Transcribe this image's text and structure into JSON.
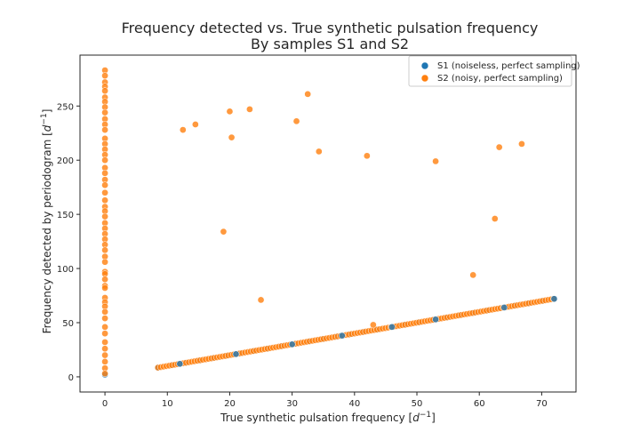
{
  "chart_data": {
    "type": "scatter",
    "title_line1": "Frequency detected vs. True synthetic pulsation frequency",
    "title_line2": "By samples S1 and S2",
    "xlabel_text": "True synthetic pulsation frequency [",
    "xlabel_unit": "d",
    "xlabel_exp": "−1",
    "xlabel_close": "]",
    "ylabel_text": "Frequency detected by periodogram [",
    "ylabel_unit": "d",
    "ylabel_exp": "−1",
    "ylabel_close": "]",
    "xlim": [
      -4,
      75.5
    ],
    "ylim": [
      -14,
      297
    ],
    "xticks": [
      0,
      10,
      20,
      30,
      40,
      50,
      60,
      70
    ],
    "yticks": [
      0,
      50,
      100,
      150,
      200,
      250
    ],
    "grid": false,
    "legend_position": "top-right",
    "colors": {
      "s1": "#1f77b4",
      "s2": "#ff7f0e",
      "axes": "#262626"
    },
    "legend": [
      {
        "label": "S1 (noiseless, perfect sampling)",
        "color": "#1f77b4"
      },
      {
        "label": "S2 (noisy, perfect sampling)",
        "color": "#ff7f0e"
      }
    ],
    "series": [
      {
        "name": "S1 (noiseless, perfect sampling)",
        "color": "#1f77b4",
        "points": [
          [
            0,
            2
          ],
          [
            12,
            12
          ],
          [
            21,
            21
          ],
          [
            30,
            30
          ],
          [
            38,
            38
          ],
          [
            46,
            46
          ],
          [
            53,
            53
          ],
          [
            64,
            64
          ],
          [
            72,
            72
          ]
        ],
        "diagonal_range": [
          8.5,
          72
        ]
      },
      {
        "name": "S2 (noisy, perfect sampling)",
        "color": "#ff7f0e",
        "diagonal_range": [
          8.5,
          72
        ],
        "points": [
          [
            0,
            283
          ],
          [
            0,
            278
          ],
          [
            0,
            272
          ],
          [
            0,
            268
          ],
          [
            0,
            264
          ],
          [
            0,
            258
          ],
          [
            0,
            254
          ],
          [
            0,
            249
          ],
          [
            0,
            244
          ],
          [
            0,
            238
          ],
          [
            0,
            233
          ],
          [
            0,
            228
          ],
          [
            0,
            220
          ],
          [
            0,
            215
          ],
          [
            0,
            210
          ],
          [
            0,
            205
          ],
          [
            0,
            200
          ],
          [
            0,
            193
          ],
          [
            0,
            188
          ],
          [
            0,
            182
          ],
          [
            0,
            177
          ],
          [
            0,
            170
          ],
          [
            0,
            163
          ],
          [
            0,
            157
          ],
          [
            0,
            153
          ],
          [
            0,
            148
          ],
          [
            0,
            142
          ],
          [
            0,
            137
          ],
          [
            0,
            132
          ],
          [
            0,
            127
          ],
          [
            0,
            122
          ],
          [
            0,
            117
          ],
          [
            0,
            111
          ],
          [
            0,
            106
          ],
          [
            0,
            97
          ],
          [
            0,
            95
          ],
          [
            0,
            90
          ],
          [
            0,
            84
          ],
          [
            0,
            82
          ],
          [
            0,
            73
          ],
          [
            0,
            69
          ],
          [
            0,
            65
          ],
          [
            0,
            60
          ],
          [
            0,
            54
          ],
          [
            0,
            46
          ],
          [
            0,
            40
          ],
          [
            0,
            32
          ],
          [
            0,
            26
          ],
          [
            0,
            20
          ],
          [
            0,
            14
          ],
          [
            0,
            8
          ],
          [
            0,
            3
          ],
          [
            12.5,
            228
          ],
          [
            14.5,
            233
          ],
          [
            20,
            245
          ],
          [
            20.3,
            221
          ],
          [
            23.2,
            247
          ],
          [
            30.7,
            236
          ],
          [
            32.5,
            261
          ],
          [
            34.3,
            208
          ],
          [
            42,
            204
          ],
          [
            53,
            199
          ],
          [
            63.2,
            212
          ],
          [
            66.8,
            215
          ],
          [
            19,
            134
          ],
          [
            62.5,
            146
          ],
          [
            59,
            94
          ],
          [
            25,
            71
          ],
          [
            43,
            48
          ]
        ]
      }
    ]
  }
}
